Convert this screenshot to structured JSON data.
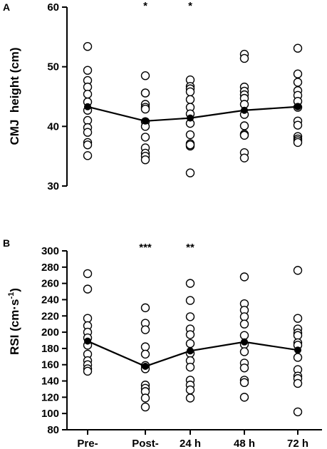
{
  "chart_data": [
    {
      "panel": "A",
      "type": "scatter",
      "categories": [
        "Pre-",
        "Post-",
        "24 h",
        "48 h",
        "72 h"
      ],
      "ylabel": "CMJ  height (cm)",
      "ylim": [
        30,
        60
      ],
      "yticks": [
        30,
        40,
        50,
        60
      ],
      "individual_points": [
        [
          53.4,
          49.4,
          47.7,
          46.6,
          45.4,
          44.1,
          42.7,
          41.0,
          39.8,
          39.0,
          37.3,
          36.9,
          35.1
        ],
        [
          48.5,
          45.6,
          45.6,
          43.7,
          43.2,
          42.9,
          40.8,
          40.0,
          38.2,
          36.4,
          35.5,
          35.0,
          34.4
        ],
        [
          47.8,
          46.7,
          46.3,
          45.8,
          44.5,
          43.2,
          42.1,
          40.5,
          38.6,
          37.1,
          36.7,
          36.9,
          32.2
        ],
        [
          52.1,
          51.4,
          46.6,
          45.9,
          45.3,
          44.7,
          43.7,
          42.0,
          40.1,
          38.7,
          38.5,
          35.6,
          34.7
        ],
        [
          53.1,
          48.8,
          47.4,
          46.0,
          45.2,
          44.2,
          43.2,
          40.9,
          40.2,
          38.3,
          37.9,
          37.6,
          37.3
        ]
      ],
      "series": [
        {
          "name": "",
          "marker": "filled-circle",
          "values": [
            43.3,
            40.9,
            41.4,
            42.7,
            43.3
          ]
        }
      ],
      "annotations": [
        "",
        "*",
        "*",
        "",
        ""
      ]
    },
    {
      "panel": "B",
      "type": "scatter",
      "categories": [
        "Pre-",
        "Post-",
        "24 h",
        "48 h",
        "72 h"
      ],
      "ylabel": "RSI (cm·s-1)",
      "ylabel_parts": {
        "base": "RSI (cm·s",
        "superscript": "-1",
        "close": ")"
      },
      "ylim": [
        80,
        300
      ],
      "yticks": [
        80,
        100,
        120,
        140,
        160,
        180,
        200,
        220,
        240,
        260,
        280,
        300
      ],
      "individual_points": [
        [
          272,
          253,
          217,
          208,
          200,
          193,
          184,
          173,
          165,
          160,
          155,
          152
        ],
        [
          230,
          211,
          203,
          182,
          173,
          159,
          155,
          135,
          131,
          127,
          119,
          108
        ],
        [
          260,
          239,
          219,
          204,
          197,
          186,
          174,
          165,
          157,
          141,
          135,
          129,
          119
        ],
        [
          268,
          235,
          227,
          219,
          210,
          196,
          185,
          176,
          162,
          156,
          141,
          138,
          120
        ],
        [
          276,
          217,
          204,
          199,
          196,
          187,
          184,
          169,
          154,
          146,
          143,
          137,
          102
        ]
      ],
      "series": [
        {
          "name": "",
          "marker": "filled-circle",
          "values": [
            189,
            158,
            177,
            188,
            178
          ]
        }
      ],
      "annotations": [
        "",
        "***",
        "**",
        "",
        ""
      ]
    }
  ]
}
